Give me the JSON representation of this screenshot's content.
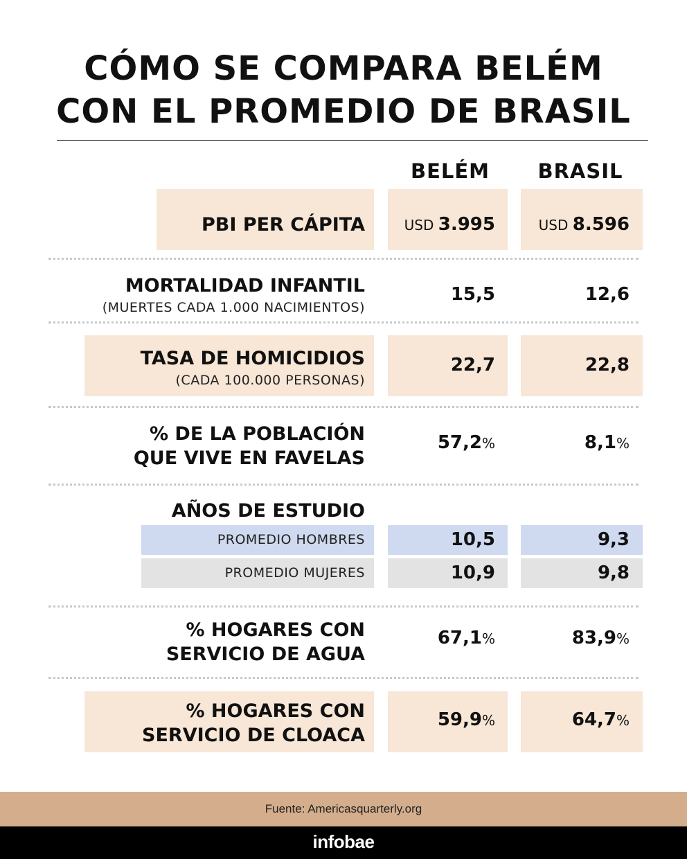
{
  "title": {
    "line1": "CÓMO SE COMPARA BELÉM",
    "line2": "CON EL PROMEDIO DE BRASIL"
  },
  "columns": {
    "belem": "BELÉM",
    "brasil": "BRASIL"
  },
  "rows": {
    "pbi": {
      "label": "PBI PER CÁPITA",
      "belem_prefix": "USD ",
      "belem": "3.995",
      "brasil_prefix": "USD ",
      "brasil": "8.596"
    },
    "mortalidad": {
      "label": "MORTALIDAD INFANTIL",
      "sublabel": "(MUERTES CADA 1.000 NACIMIENTOS)",
      "belem": "15,5",
      "brasil": "12,6"
    },
    "homicidios": {
      "label": "TASA DE HOMICIDIOS",
      "sublabel": "(CADA 100.000 PERSONAS)",
      "belem": "22,7",
      "brasil": "22,8"
    },
    "favelas": {
      "label_line1": "% DE LA POBLACIÓN",
      "label_line2": "QUE VIVE EN FAVELAS",
      "belem": "57,2",
      "brasil": "8,1",
      "unit": "%"
    },
    "estudio": {
      "label": "AÑOS DE ESTUDIO",
      "hombres": {
        "label": "PROMEDIO HOMBRES",
        "belem": "10,5",
        "brasil": "9,3"
      },
      "mujeres": {
        "label": "PROMEDIO MUJERES",
        "belem": "10,9",
        "brasil": "9,8"
      }
    },
    "agua": {
      "label_line1": "% HOGARES CON",
      "label_line2": "SERVICIO DE AGUA",
      "belem": "67,1",
      "brasil": "83,9",
      "unit": "%"
    },
    "cloaca": {
      "label_line1": "% HOGARES CON",
      "label_line2": "SERVICIO DE CLOACA",
      "belem": "59,9",
      "brasil": "64,7",
      "unit": "%"
    }
  },
  "footer": {
    "source": "Fuente: Americasquarterly.org",
    "brand": "infobae"
  },
  "colors": {
    "peach": "#f8e6d6",
    "blue": "#cfdaf0",
    "grey": "#e3e3e3",
    "source_bar": "#d4ae8c",
    "brand_bar": "#000000"
  }
}
